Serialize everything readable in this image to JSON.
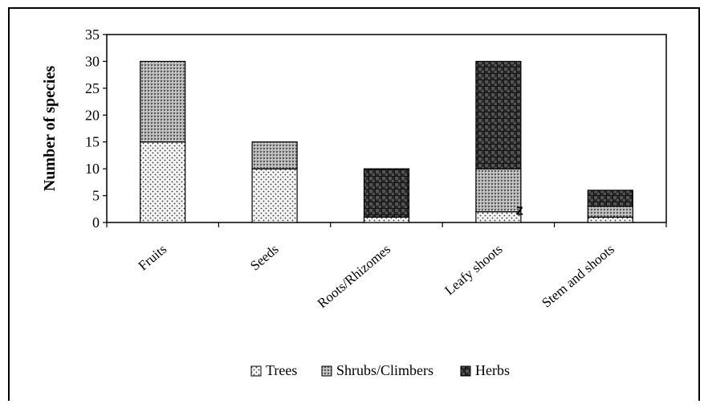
{
  "colors": {
    "axis": "#000000",
    "background": "#ffffff"
  },
  "chart_data": {
    "type": "bar",
    "stacked": true,
    "categories": [
      "Fruits",
      "Seeds",
      "Roots/Rhizomes",
      "Leafy shoots",
      "Stem and shoots"
    ],
    "series": [
      {
        "name": "Trees",
        "values": [
          15,
          10,
          1,
          2,
          1
        ],
        "pattern": "dots"
      },
      {
        "name": "Shrubs/Climbers",
        "values": [
          15,
          5,
          0,
          8,
          2
        ],
        "pattern": "dense-dots"
      },
      {
        "name": "Herbs",
        "values": [
          0,
          0,
          9,
          20,
          3
        ],
        "pattern": "dark-check"
      }
    ],
    "ylabel": "Number of species",
    "xlabel": "",
    "ylim": [
      0,
      35
    ],
    "yticks": [
      0,
      5,
      10,
      15,
      20,
      25,
      30,
      35
    ],
    "grid": false,
    "legend_position": "bottom",
    "annotations": [
      {
        "text": "z",
        "category": "Leafy shoots",
        "y": 2
      }
    ]
  }
}
